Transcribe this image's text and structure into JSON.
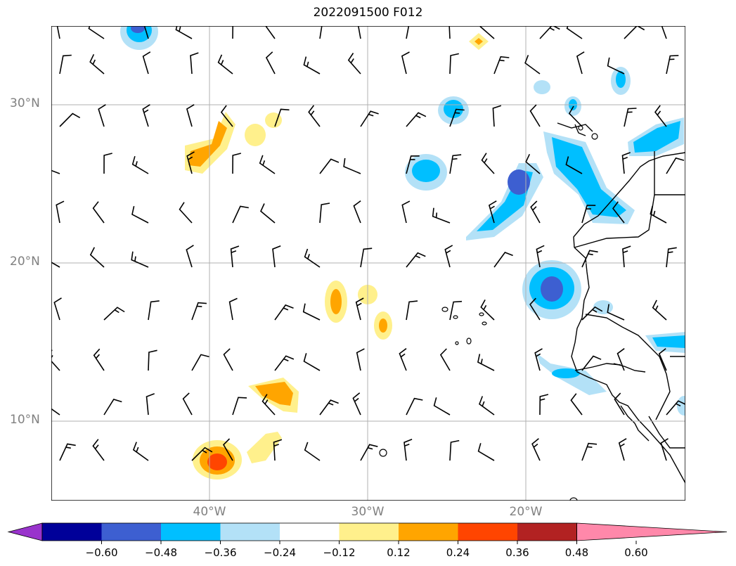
{
  "title": "2022091500 F012",
  "lat_labels": [
    "30°N",
    "20°N",
    "10°N"
  ],
  "lon_labels": [
    "40°W",
    "30°W",
    "20°W"
  ],
  "colorbar": {
    "ticks": [
      "−0.60",
      "−0.48",
      "−0.36",
      "−0.24",
      "−0.12",
      "0.12",
      "0.24",
      "0.36",
      "0.48",
      "0.60"
    ],
    "colors": [
      "#9933cc",
      "#000099",
      "#3d5fd1",
      "#00bfff",
      "#b3e1f7",
      "#ffffff",
      "#fff08c",
      "#ffa500",
      "#ff4500",
      "#b22222",
      "#ff88aa"
    ]
  },
  "colors": {
    "grid": "#b0b0b0",
    "coast": "#000000",
    "label": "#808080"
  }
}
